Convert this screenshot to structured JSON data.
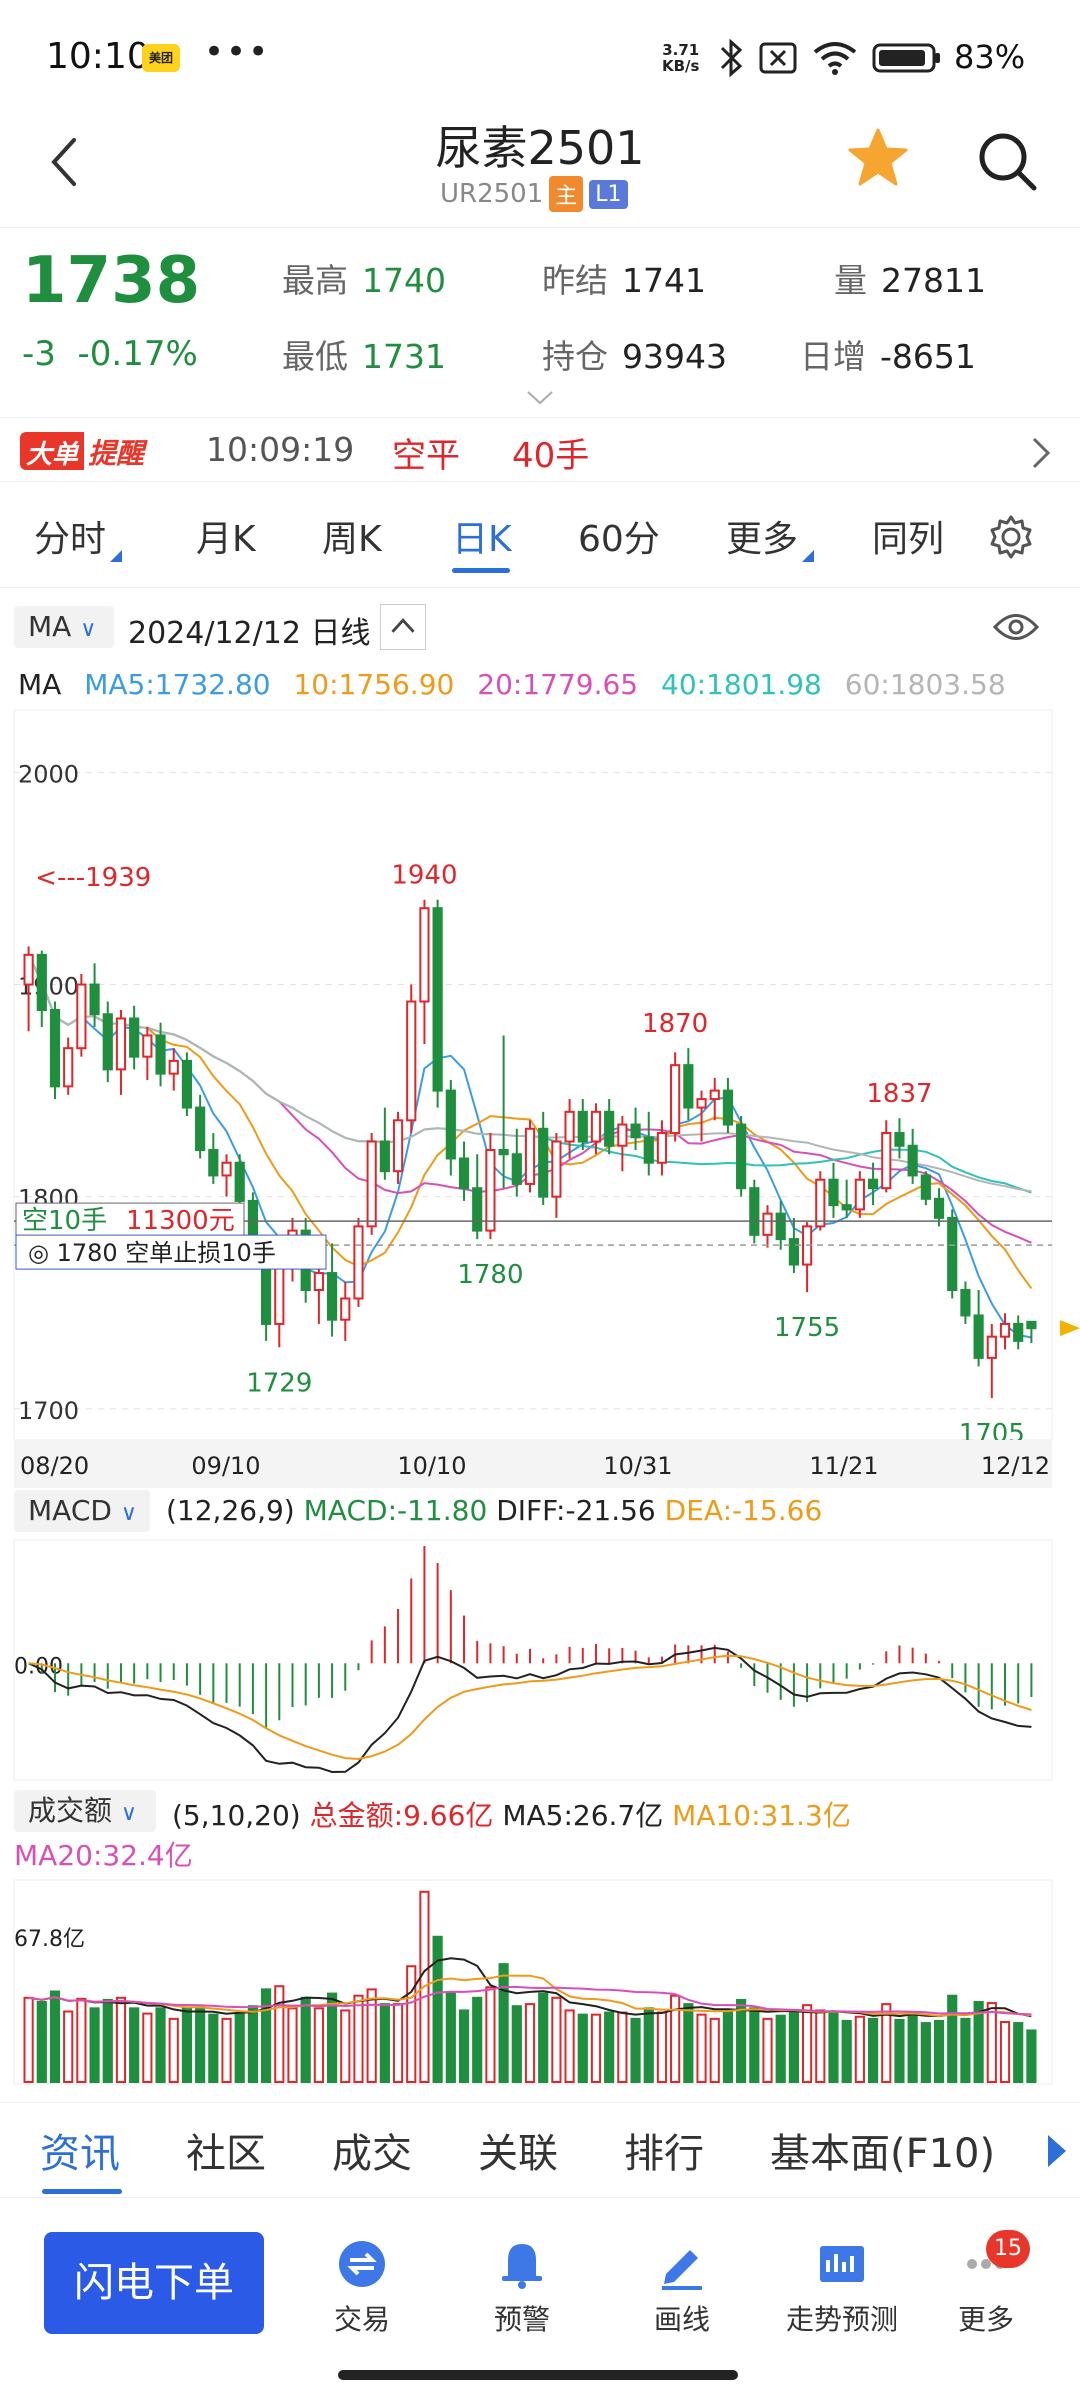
{
  "status_bar": {
    "time": "10:10",
    "app_badge": "美团",
    "net_speed_value": "3.71",
    "net_speed_unit": "KB/s",
    "battery": "83%"
  },
  "header": {
    "title": "尿素2501",
    "code": "UR2501",
    "tag_main": "主",
    "tag_level": "L1"
  },
  "quote": {
    "price": "1738",
    "change": "-3",
    "change_pct": "-0.17%",
    "high_label": "最高",
    "high": "1740",
    "low_label": "最低",
    "low": "1731",
    "prev_settle_label": "昨结",
    "prev_settle": "1741",
    "open_interest_label": "持仓",
    "open_interest": "93943",
    "volume_label": "量",
    "volume": "27811",
    "daily_change_label": "日增",
    "daily_change": "-8651"
  },
  "alert": {
    "logo_a": "大单",
    "logo_b": "提醒",
    "time": "10:09:19",
    "action": "空平",
    "lots": "40手"
  },
  "period_tabs": [
    "分时",
    "月K",
    "周K",
    "日K",
    "60分",
    "更多",
    "同列"
  ],
  "chart_header": {
    "indicator": "MA",
    "date": "2024/12/12",
    "period": "日线"
  },
  "ma_legend": {
    "label": "MA",
    "ma5": "MA5:1732.80",
    "ma10": "10:1756.90",
    "ma20": "20:1779.65",
    "ma40": "40:1801.98",
    "ma60": "60:1803.58"
  },
  "colors": {
    "up": "#e0262a",
    "down": "#1f8f3f",
    "ma5": "#3b9ce6",
    "ma10": "#f09a1a",
    "ma20": "#d94fb8",
    "ma40": "#2fc2b9",
    "ma60": "#b5b5b5",
    "accent": "#2d6fd8"
  },
  "chart_data": {
    "type": "candlestick",
    "ylim": [
      1690,
      2020
    ],
    "y_ticks": [
      "2000",
      "1900",
      "1800",
      "1700"
    ],
    "x_labels": [
      "08/20",
      "09/10",
      "10/10",
      "10/31",
      "11/21",
      "12/12"
    ],
    "annotations": [
      {
        "label": "<---1939",
        "value": 1939
      },
      {
        "label": "1940",
        "value": 1940
      },
      {
        "label": "1729",
        "value": 1729
      },
      {
        "label": "1780",
        "value": 1780
      },
      {
        "label": "1870",
        "value": 1870
      },
      {
        "label": "1755",
        "value": 1755
      },
      {
        "label": "1837",
        "value": 1837
      },
      {
        "label": "1705",
        "value": 1705
      }
    ],
    "order_line": {
      "short_label": "空10手",
      "amount": "11300元",
      "stop_label": "1780 空单止损10手",
      "value": 1780
    },
    "candles": [
      [
        1900,
        1918,
        1878,
        1914
      ],
      [
        1914,
        1916,
        1880,
        1888
      ],
      [
        1888,
        1892,
        1846,
        1852
      ],
      [
        1852,
        1875,
        1848,
        1870
      ],
      [
        1870,
        1905,
        1866,
        1900
      ],
      [
        1900,
        1910,
        1880,
        1886
      ],
      [
        1886,
        1892,
        1854,
        1860
      ],
      [
        1860,
        1888,
        1848,
        1884
      ],
      [
        1884,
        1890,
        1860,
        1866
      ],
      [
        1866,
        1880,
        1855,
        1876
      ],
      [
        1876,
        1882,
        1852,
        1858
      ],
      [
        1858,
        1870,
        1850,
        1864
      ],
      [
        1864,
        1868,
        1838,
        1842
      ],
      [
        1842,
        1848,
        1818,
        1822
      ],
      [
        1822,
        1830,
        1806,
        1810
      ],
      [
        1810,
        1820,
        1800,
        1816
      ],
      [
        1816,
        1820,
        1795,
        1798
      ],
      [
        1798,
        1802,
        1770,
        1776
      ],
      [
        1776,
        1780,
        1732,
        1740
      ],
      [
        1740,
        1780,
        1729,
        1774
      ],
      [
        1774,
        1790,
        1760,
        1784
      ],
      [
        1784,
        1790,
        1750,
        1756
      ],
      [
        1756,
        1770,
        1740,
        1764
      ],
      [
        1764,
        1778,
        1734,
        1742
      ],
      [
        1742,
        1760,
        1732,
        1752
      ],
      [
        1752,
        1790,
        1748,
        1786
      ],
      [
        1786,
        1830,
        1782,
        1826
      ],
      [
        1826,
        1842,
        1808,
        1812
      ],
      [
        1812,
        1840,
        1806,
        1836
      ],
      [
        1836,
        1900,
        1830,
        1892
      ],
      [
        1892,
        1940,
        1872,
        1936
      ],
      [
        1936,
        1940,
        1842,
        1850
      ],
      [
        1850,
        1855,
        1810,
        1818
      ],
      [
        1818,
        1826,
        1798,
        1804
      ],
      [
        1804,
        1820,
        1780,
        1784
      ],
      [
        1784,
        1830,
        1780,
        1822
      ],
      [
        1822,
        1876,
        1804,
        1820
      ],
      [
        1820,
        1832,
        1800,
        1806
      ],
      [
        1806,
        1836,
        1802,
        1832
      ],
      [
        1832,
        1840,
        1796,
        1800
      ],
      [
        1800,
        1830,
        1790,
        1826
      ],
      [
        1826,
        1846,
        1818,
        1840
      ],
      [
        1840,
        1846,
        1822,
        1826
      ],
      [
        1826,
        1844,
        1820,
        1840
      ],
      [
        1840,
        1846,
        1820,
        1824
      ],
      [
        1824,
        1838,
        1812,
        1834
      ],
      [
        1834,
        1842,
        1822,
        1828
      ],
      [
        1828,
        1840,
        1810,
        1816
      ],
      [
        1816,
        1836,
        1810,
        1830
      ],
      [
        1830,
        1868,
        1826,
        1862
      ],
      [
        1862,
        1870,
        1836,
        1842
      ],
      [
        1842,
        1850,
        1826,
        1846
      ],
      [
        1846,
        1856,
        1836,
        1850
      ],
      [
        1850,
        1856,
        1830,
        1834
      ],
      [
        1834,
        1838,
        1800,
        1804
      ],
      [
        1804,
        1808,
        1778,
        1782
      ],
      [
        1782,
        1796,
        1776,
        1792
      ],
      [
        1792,
        1798,
        1775,
        1780
      ],
      [
        1780,
        1790,
        1764,
        1768
      ],
      [
        1768,
        1788,
        1755,
        1786
      ],
      [
        1786,
        1812,
        1784,
        1808
      ],
      [
        1808,
        1816,
        1790,
        1796
      ],
      [
        1796,
        1808,
        1790,
        1794
      ],
      [
        1794,
        1812,
        1790,
        1808
      ],
      [
        1808,
        1816,
        1796,
        1804
      ],
      [
        1804,
        1836,
        1802,
        1830
      ],
      [
        1830,
        1837,
        1818,
        1824
      ],
      [
        1824,
        1832,
        1806,
        1810
      ],
      [
        1810,
        1812,
        1796,
        1799
      ],
      [
        1799,
        1804,
        1786,
        1790
      ],
      [
        1790,
        1794,
        1752,
        1756
      ],
      [
        1756,
        1760,
        1740,
        1744
      ],
      [
        1744,
        1756,
        1720,
        1724
      ],
      [
        1724,
        1740,
        1705,
        1734
      ],
      [
        1734,
        1745,
        1728,
        1740
      ],
      [
        1740,
        1744,
        1728,
        1732
      ],
      [
        1741,
        1740,
        1731,
        1738
      ]
    ],
    "macd_header": {
      "label": "MACD",
      "params": "(12,26,9)",
      "macd": "MACD:-11.80",
      "diff": "DIFF:-21.56",
      "dea": "DEA:-15.66",
      "zero_label": "0.00"
    },
    "volume_header": {
      "label": "成交额",
      "params": "(5,10,20)",
      "total": "总金额:9.66亿",
      "ma5": "MA5:26.7亿",
      "ma10": "MA10:31.3亿",
      "ma20": "MA20:32.4亿",
      "axis_label": "67.8亿"
    }
  },
  "bottom_tabs": [
    "资讯",
    "社区",
    "成交",
    "关联",
    "排行",
    "基本面(F10)"
  ],
  "action_bar": {
    "flash": "闪电下单",
    "trade": "交易",
    "alert": "预警",
    "draw": "画线",
    "forecast": "走势预测",
    "more": "更多",
    "more_badge": "15"
  }
}
